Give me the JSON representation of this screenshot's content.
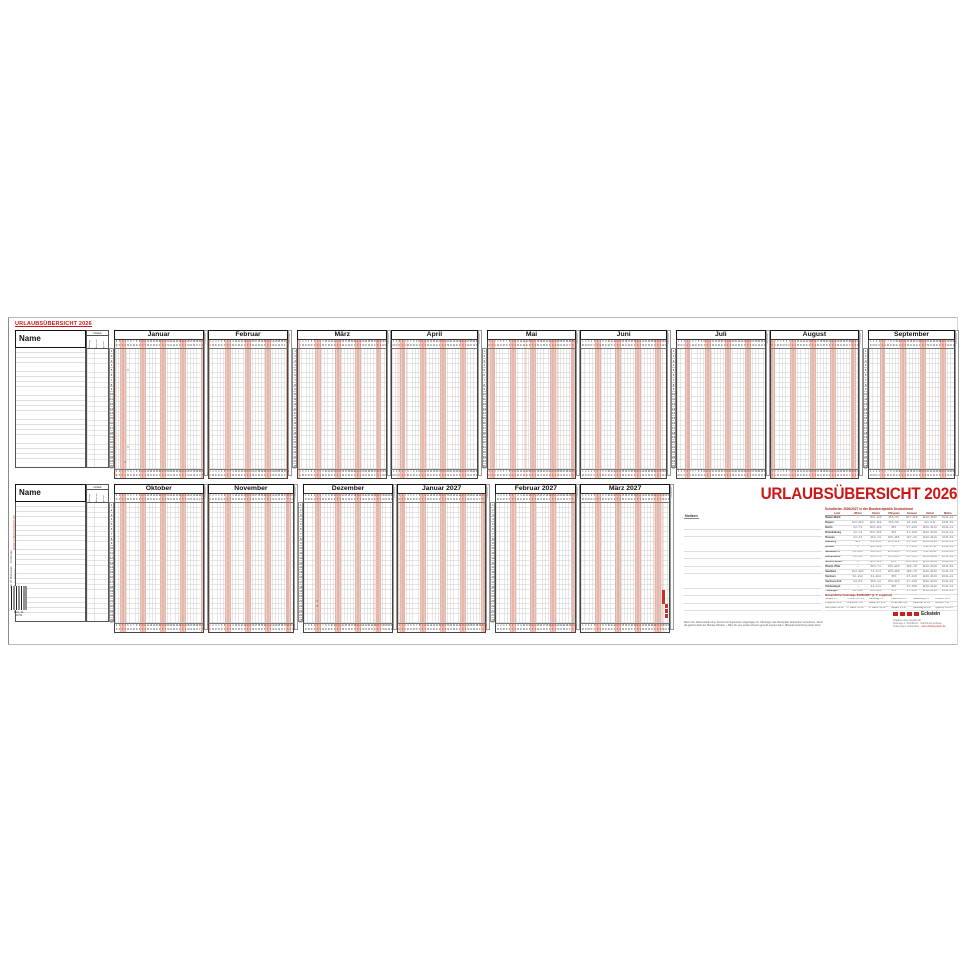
{
  "header": {
    "small_title": "URLAUBSÜBERSICHT 2026",
    "big_title": "URLAUBSÜBERSICHT 2026"
  },
  "name_header": "Name",
  "urlaub": {
    "header": "Urlaub",
    "sub": [
      "Übertrag",
      "Anspruch",
      "gesamt"
    ]
  },
  "sep_label": "Resturlaub",
  "rows_per_band": 25,
  "weekday_letters": [
    "M",
    "D",
    "M",
    "D",
    "F",
    "S",
    "S"
  ],
  "months": {
    "Januar": {
      "days": 31,
      "start": 3,
      "holidays": [
        1
      ]
    },
    "Februar": {
      "days": 28,
      "start": 6,
      "holidays": []
    },
    "März": {
      "days": 31,
      "start": 6,
      "holidays": []
    },
    "April": {
      "days": 30,
      "start": 2,
      "holidays": [
        3,
        6
      ]
    },
    "Mai": {
      "days": 31,
      "start": 4,
      "holidays": [
        1,
        14,
        25
      ]
    },
    "Juni": {
      "days": 30,
      "start": 0,
      "holidays": []
    },
    "Juli": {
      "days": 31,
      "start": 2,
      "holidays": []
    },
    "August": {
      "days": 31,
      "start": 5,
      "holidays": []
    },
    "September": {
      "days": 30,
      "start": 1,
      "holidays": []
    },
    "Oktober": {
      "days": 31,
      "start": 3,
      "holidays": [
        3
      ]
    },
    "November": {
      "days": 30,
      "start": 6,
      "holidays": []
    },
    "Dezember": {
      "days": 31,
      "start": 1,
      "holidays": [
        25,
        26
      ]
    },
    "Januar 2027": {
      "days": 31,
      "start": 4,
      "holidays": [
        1
      ]
    },
    "Februar 2027": {
      "days": 28,
      "start": 0,
      "holidays": []
    },
    "März 2027": {
      "days": 31,
      "start": 0,
      "holidays": [
        26,
        29
      ]
    }
  },
  "bands": [
    {
      "groups": [
        [
          "Januar",
          "Februar"
        ],
        [
          "März",
          "April"
        ],
        [
          "Mai",
          "Juni"
        ],
        [
          "Juli",
          "August"
        ],
        [
          "September"
        ]
      ]
    },
    {
      "groups": [
        [
          "Oktober",
          "November"
        ],
        [
          "Dezember",
          "Januar 2027"
        ],
        [
          "Februar 2027",
          "März 2027"
        ]
      ]
    }
  ],
  "example_marks": [
    {
      "month": "Januar",
      "day": 5,
      "row": 5,
      "type": "x"
    },
    {
      "month": "Januar",
      "day": 5,
      "row": 21,
      "type": "x"
    },
    {
      "month": "Januar",
      "day": 4,
      "row": 24,
      "type": "x"
    },
    {
      "month": "Dezember",
      "day": 5,
      "row": 21,
      "type": "x"
    },
    {
      "month": "Dezember",
      "day": 5,
      "row": 22,
      "type": "x"
    },
    {
      "month": "März 2027",
      "day": 29,
      "row": 19,
      "type": "fill"
    },
    {
      "month": "März 2027",
      "day": 29,
      "row": 20,
      "type": "fill"
    },
    {
      "month": "März 2027",
      "day": 29,
      "row": 21,
      "type": "fill"
    },
    {
      "month": "März 2027",
      "day": 30,
      "row": 22,
      "type": "fill"
    },
    {
      "month": "März 2027",
      "day": 30,
      "row": 23,
      "type": "fill"
    },
    {
      "month": "März 2027",
      "day": 30,
      "row": 24,
      "type": "fill"
    }
  ],
  "right": {
    "notes_label": "Notizen",
    "schulferien": {
      "title": "Schulferien 2026/2027 in der Bundesrepublik Deutschland",
      "corner": "Land",
      "columns": [
        "Winter",
        "Ostern",
        "Pfingsten",
        "Sommer",
        "Herbst",
        "Weihn."
      ],
      "rows": [
        [
          "Baden-Württ.",
          "—",
          "30.3.–10.4.",
          "26.5.–5.6.",
          "30.7.–12.9.",
          "26.10.–30.10.",
          "23.12.–9.1."
        ],
        [
          "Bayern",
          "16.2.–20.2.",
          "30.3.–10.4.",
          "26.5.–5.6.",
          "1.8.–14.9.",
          "2.11.–6.11.",
          "24.12.–8.1."
        ],
        [
          "Berlin",
          "2.2.–7.2.",
          "30.3.–10.4.",
          "15.5.",
          "9.7.–21.8.",
          "19.10.–31.10.",
          "23.12.–2.1."
        ],
        [
          "Brandenburg",
          "2.2.–7.2.",
          "30.3.–10.4.",
          "15.5.",
          "9.7.–22.8.",
          "19.10.–30.10.",
          "21.12.–2.1."
        ],
        [
          "Bremen",
          "2.2.–3.2.",
          "23.3.–7.4.",
          "15.5.–26.5.",
          "23.7.–2.9.",
          "12.10.–24.10.",
          "23.12.–8.1."
        ],
        [
          "Hamburg",
          "30.1.",
          "2.3.–13.3.",
          "11.5.–15.5.",
          "9.7.–19.8.",
          "19.10.–30.10.",
          "21.12.–1.1."
        ],
        [
          "Hessen",
          "—",
          "30.3.–10.4.",
          "—",
          "6.7.–14.8.",
          "5.10.–17.10.",
          "21.12.–9.1."
        ],
        [
          "Mecklenb.-V.",
          "2.2.–12.2.",
          "28.3.–8.4.",
          "22.5.–26.5.",
          "6.7.–15.8.",
          "5.10.–10.10.",
          "21.12.–6.1."
        ],
        [
          "Niedersachs.",
          "2.2.–3.2.",
          "23.3.–7.4.",
          "15.5.–26.5.",
          "23.7.–2.9.",
          "12.10.–24.10.",
          "23.12.–8.1."
        ],
        [
          "Nordrh.-Westf.",
          "—",
          "30.3.–11.4.",
          "26.5.",
          "29.6.–11.8.",
          "12.10.–24.10.",
          "23.12.–6.1."
        ],
        [
          "Rheinl.-Pfalz",
          "—",
          "30.3.–7.4.",
          "15.5.–22.5.",
          "29.6.–7.8.",
          "12.10.–23.10.",
          "23.12.–8.1."
        ],
        [
          "Saarland",
          "16.2.–20.2.",
          "7.4.–17.4.",
          "26.5.–29.5.",
          "29.6.–7.8.",
          "12.10.–23.10.",
          "21.12.–2.1."
        ],
        [
          "Sachsen",
          "9.2.–21.2.",
          "3.4.–10.4.",
          "15.5.",
          "4.7.–14.8.",
          "12.10.–24.10.",
          "23.12.–2.1."
        ],
        [
          "Sachsen-Anh.",
          "2.2.–6.2.",
          "30.3.–4.4.",
          "15.5.–22.5.",
          "4.7.–14.8.",
          "19.10.–23.10.",
          "21.12.–5.1."
        ],
        [
          "Schleswig-H.",
          "—",
          "3.4.–17.4.",
          "15.5.",
          "4.7.–15.8.",
          "12.10.–24.10.",
          "21.12.–6.1."
        ],
        [
          "Thüringen",
          "9.2.–14.2.",
          "30.3.–10.4.",
          "15.5.",
          "4.7.–14.8.",
          "12.10.–24.10.",
          "23.12.–2.1."
        ]
      ]
    },
    "feiertage": {
      "title": "Gesetzliche Feiertage 2026/2027 (z. T. regional)",
      "items": [
        "Neujahr 1.1.",
        "Hl. Drei Kön. 6.1.",
        "Karfreitag 3.4.",
        "Ostermont. 6.4.",
        "Maifeiertag 1.5.",
        "Himmelf. 14.5.",
        "Pfingstmo. 25.5.",
        "Fronleichn. 4.6.",
        "Mariä Him. 15.8.",
        "Dt. Einheit 3.10.",
        "Reformat. 31.10.",
        "Allerheil. 1.11.",
        "Buß-u.Bett. 18.11.",
        "1. Weihn. 25.12.",
        "2. Weihn. 26.12.",
        "Neujahr 1.1.27",
        "Karfreitag 26.3.27",
        "Ostermo. 29.3.27"
      ]
    },
    "logo": {
      "brand": "Eckstein",
      "lines": [
        "Angaben ohne Gewähr für",
        "Feiertage u. Schulferien · Nachdruck verboten",
        "Änderungen vorbehalten · "
      ],
      "link": "www.urlaubs-planer.de"
    },
    "note": [
      "Wenn der Jahresurlaub einer Person bis September eingetragen ist, Übertrag in die Restspalte September vornehmen, damit",
      "die gleiche Zeile der Monate Oktober – März für eine andere Person genutzt werden kann. (Beispiel-Anordnung siehe links)"
    ]
  },
  "margin": {
    "vertical_red": "www.urlaubsplaner.de",
    "vertical_black": "Für 25 Mitarbeiter · 12 Monate · 98 × 31,5 cm",
    "order_label": "Best.-Nr.",
    "order_no": "19 50"
  }
}
